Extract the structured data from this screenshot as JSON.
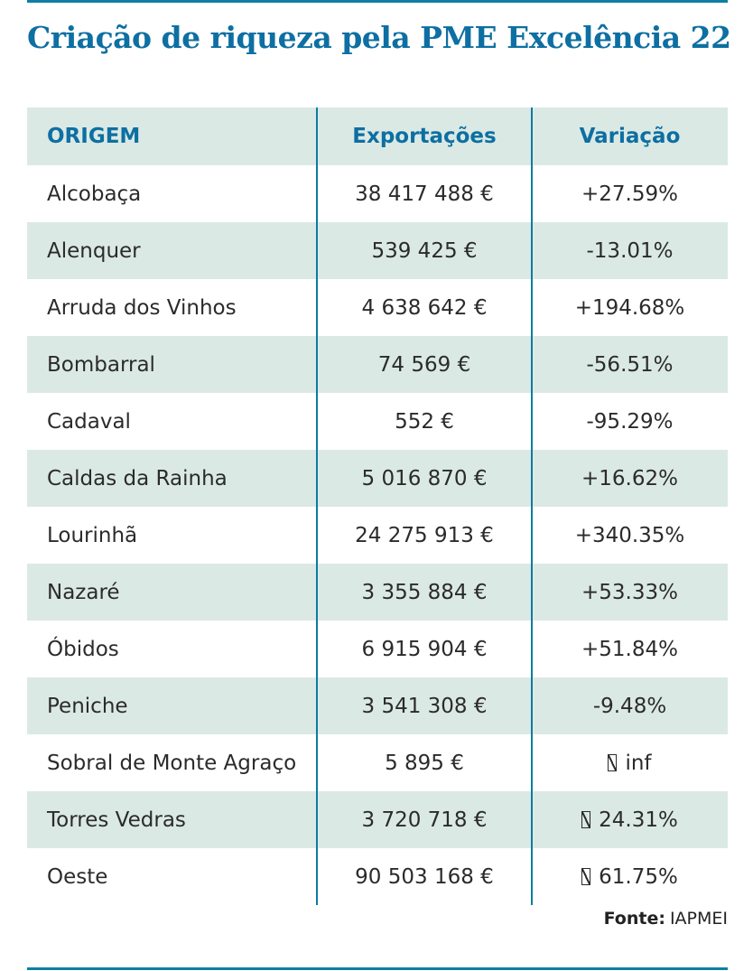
{
  "title": "Criação de riqueza pela PME Excelência 22",
  "chart_data": {
    "type": "table",
    "title": "Criação de riqueza pela PME Excelência 22",
    "columns": [
      "ORIGEM",
      "Exportações",
      "Variação"
    ],
    "rows": [
      [
        "Alcobaça",
        "38 417 488 €",
        "+27.59%"
      ],
      [
        "Alenquer",
        "539 425 €",
        "-13.01%"
      ],
      [
        "Arruda dos Vinhos",
        "4 638 642 €",
        "+194.68%"
      ],
      [
        "Bombarral",
        "74 569 €",
        "-56.51%"
      ],
      [
        "Cadaval",
        "552 €",
        "-95.29%"
      ],
      [
        "Caldas da Rainha",
        "5 016 870 €",
        "+16.62%"
      ],
      [
        "Lourinhã",
        "24 275 913 €",
        "+340.35%"
      ],
      [
        "Nazaré",
        "3 355 884 €",
        "+53.33%"
      ],
      [
        "Óbidos",
        "6 915 904 €",
        "+51.84%"
      ],
      [
        "Peniche",
        "3 541 308 €",
        "-9.48%"
      ],
      [
        "Sobral de Monte Agraço",
        "5 895 €",
        "□ inf"
      ],
      [
        "Torres Vedras",
        "3 720 718 €",
        "□ 24.31%"
      ],
      [
        "Oeste",
        "90 503 168 €",
        "□ 61.75%"
      ]
    ],
    "missing_glyph_marker": "□",
    "source": "IAPMEI",
    "legend_position": "none",
    "grid": "column-dividers"
  },
  "footer": {
    "source_label": "Fonte:",
    "source_value": "IAPMEI"
  },
  "colors": {
    "accent_blue": "#0d6fa2",
    "divider_teal": "#0a7da0",
    "row_teal": "#dbe9e4",
    "text_dark": "#2b2b2b",
    "background": "#ffffff"
  }
}
